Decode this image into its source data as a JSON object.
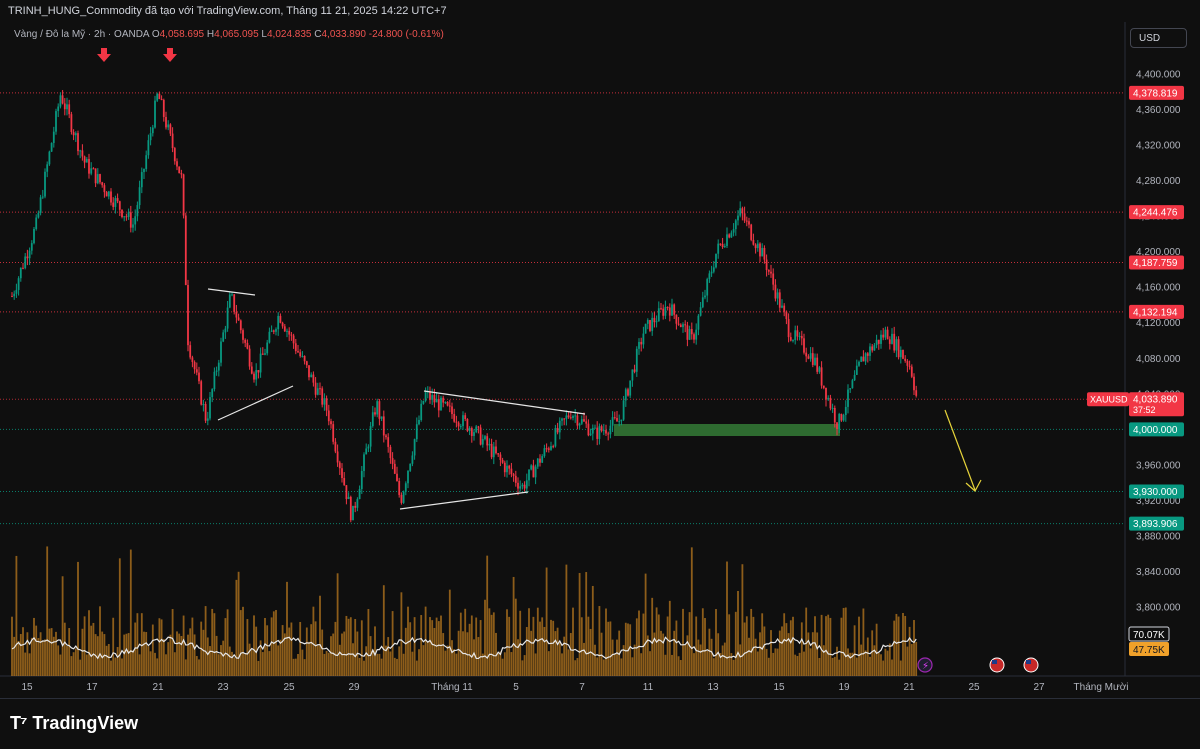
{
  "header": {
    "title": "TRINH_HUNG_Commodity đã tạo với TradingView.com, Tháng 11 21, 2025 14:22 UTC+7"
  },
  "legend": {
    "symbol": "Vàng / Đô la Mỹ · 2h · OANDA",
    "o_label": "O",
    "o_value": "4,058.695",
    "h_label": "H",
    "h_value": "4,065.095",
    "l_label": "L",
    "l_value": "4,024.835",
    "c_label": "C",
    "c_value": "4,033.890",
    "change": "-24.800 (-0.61%)"
  },
  "currency_button": "USD",
  "price_axis": {
    "ticks": [
      "4,400.000",
      "4,360.000",
      "4,320.000",
      "4,280.000",
      "4,240.000",
      "4,200.000",
      "4,160.000",
      "4,120.000",
      "4,080.000",
      "4,040.000",
      "4,000.000",
      "3,960.000",
      "3,920.000",
      "3,880.000",
      "3,840.000",
      "3,800.000"
    ],
    "tick_values": [
      4400,
      4360,
      4320,
      4280,
      4240,
      4200,
      4160,
      4120,
      4080,
      4040,
      4000,
      3960,
      3920,
      3880,
      3840,
      3800
    ],
    "levels": [
      {
        "label": "4,378.819",
        "value": 4378.819,
        "color": "#f23645",
        "line": "dotted"
      },
      {
        "label": "4,244.476",
        "value": 4244.476,
        "color": "#f23645",
        "line": "dotted"
      },
      {
        "label": "4,187.759",
        "value": 4187.759,
        "color": "#f23645",
        "line": "dotted"
      },
      {
        "label": "4,132.194",
        "value": 4132.194,
        "color": "#f23645",
        "line": "dotted"
      },
      {
        "label": "4,000.000",
        "value": 4000,
        "color": "#089981",
        "line": "dotted"
      },
      {
        "label": "3,930.000",
        "value": 3930,
        "color": "#089981",
        "line": "dotted"
      },
      {
        "label": "3,893.906",
        "value": 3893.906,
        "color": "#089981",
        "line": "dotted"
      }
    ],
    "current": {
      "symbol": "XAUUSD",
      "price": "4,033.890",
      "countdown": "37:52",
      "value": 4033.89
    }
  },
  "volume_labels": {
    "ma": "70.07K",
    "vol": "47.75K"
  },
  "time_axis": {
    "labels": [
      "15",
      "17",
      "21",
      "23",
      "25",
      "29",
      "Tháng 11",
      "5",
      "7",
      "11",
      "13",
      "15",
      "19",
      "21",
      "25",
      "27",
      "Tháng Mười"
    ]
  },
  "footer": {
    "brand": "TradingView"
  },
  "colors": {
    "up": "#089981",
    "down": "#f23645",
    "volume": "#b8781f",
    "background": "#0f0f0f",
    "zone": "#2e6b30",
    "arrow": "#e6d33a"
  },
  "chart_data": {
    "type": "candlestick",
    "title": "Vàng / Đô la Mỹ · 2h · OANDA",
    "xlabel": "",
    "ylabel": "",
    "ylim": [
      3780,
      4420
    ],
    "x_range_dates": [
      "2025-10-15",
      "2025-11-21"
    ],
    "anchors": [
      {
        "date": "2025-10-15",
        "price": 4150
      },
      {
        "date": "2025-10-16",
        "price": 4230
      },
      {
        "date": "2025-10-17",
        "price": 4378
      },
      {
        "date": "2025-10-18",
        "price": 4300
      },
      {
        "date": "2025-10-20",
        "price": 4230
      },
      {
        "date": "2025-10-21",
        "price": 4378
      },
      {
        "date": "2025-10-22",
        "price": 4280
      },
      {
        "date": "2025-10-22",
        "price": 4100
      },
      {
        "date": "2025-10-23",
        "price": 4010
      },
      {
        "date": "2025-10-24",
        "price": 4150
      },
      {
        "date": "2025-10-25",
        "price": 4060
      },
      {
        "date": "2025-10-26",
        "price": 4130
      },
      {
        "date": "2025-10-28",
        "price": 4020
      },
      {
        "date": "2025-10-29",
        "price": 3900
      },
      {
        "date": "2025-10-30",
        "price": 4030
      },
      {
        "date": "2025-10-31",
        "price": 3920
      },
      {
        "date": "2025-11-01",
        "price": 4040
      },
      {
        "date": "2025-11-03",
        "price": 4000
      },
      {
        "date": "2025-11-05",
        "price": 3935
      },
      {
        "date": "2025-11-07",
        "price": 4020
      },
      {
        "date": "2025-11-08",
        "price": 3995
      },
      {
        "date": "2025-11-09",
        "price": 4010
      },
      {
        "date": "2025-11-10",
        "price": 4110
      },
      {
        "date": "2025-11-11",
        "price": 4140
      },
      {
        "date": "2025-11-12",
        "price": 4100
      },
      {
        "date": "2025-11-13",
        "price": 4200
      },
      {
        "date": "2025-11-14",
        "price": 4244
      },
      {
        "date": "2025-11-15",
        "price": 4190
      },
      {
        "date": "2025-11-16",
        "price": 4110
      },
      {
        "date": "2025-11-17",
        "price": 4080
      },
      {
        "date": "2025-11-18",
        "price": 4005
      },
      {
        "date": "2025-11-19",
        "price": 4080
      },
      {
        "date": "2025-11-20",
        "price": 4110
      },
      {
        "date": "2025-11-21",
        "price": 4070
      },
      {
        "date": "2025-11-21",
        "price": 4033.89
      }
    ]
  },
  "icons": [
    "arrow-down-marker-icon",
    "trendline",
    "support-zone",
    "projection-arrow-icon",
    "flash-icon",
    "us-flag-icon",
    "tradingview-logo-icon"
  ]
}
